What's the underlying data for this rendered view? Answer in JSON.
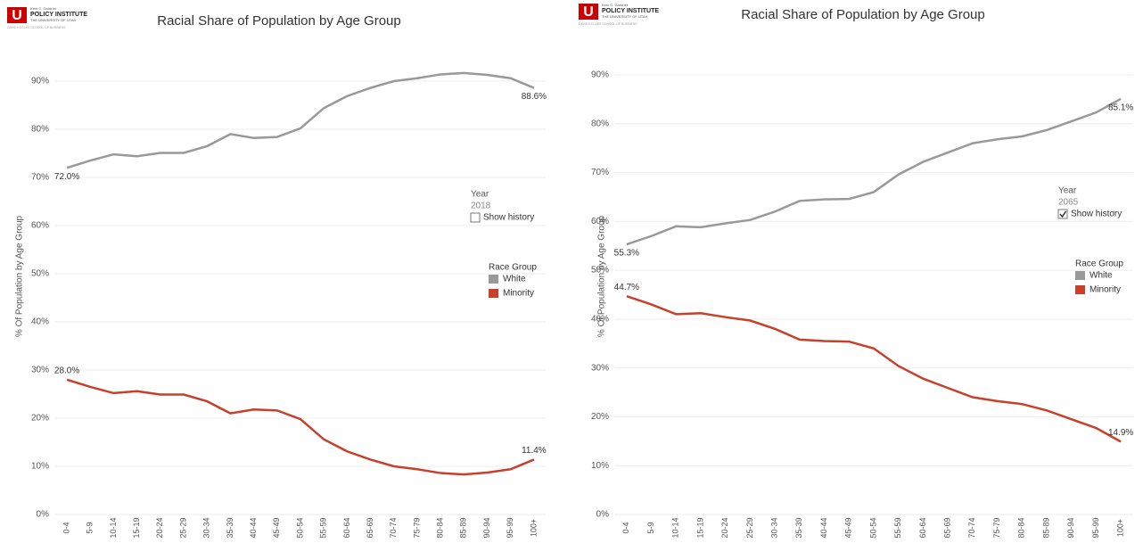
{
  "chart_data": [
    {
      "type": "line",
      "title": "Racial Share of Population by Age Group",
      "logo": {
        "top": "Kem C. Gardner",
        "name": "POLICY INSTITUTE",
        "university": "THE UNIVERSITY OF UTAH",
        "school": "DAVID ECCLES SCHOOL OF BUSINESS"
      },
      "y_label": "% Of Population by Age Group",
      "filter": {
        "label": "Year",
        "value": "2018",
        "checkbox": "Show history",
        "checked": false
      },
      "legend_title": "Race Group",
      "categories": [
        "0-4",
        "5-9",
        "10-14",
        "15-19",
        "20-24",
        "25-29",
        "30-34",
        "35-39",
        "40-44",
        "45-49",
        "50-54",
        "55-59",
        "60-64",
        "65-69",
        "70-74",
        "75-79",
        "80-84",
        "85-89",
        "90-94",
        "95-99",
        "100+"
      ],
      "series": [
        {
          "name": "White",
          "color": "#999999",
          "values": [
            72.0,
            73.5,
            74.8,
            74.4,
            75.1,
            75.1,
            76.5,
            79.0,
            78.2,
            78.4,
            80.2,
            84.4,
            86.9,
            88.6,
            90.0,
            90.6,
            91.4,
            91.7,
            91.3,
            90.6,
            88.6
          ],
          "value_labels": [
            "72.0%",
            null,
            null,
            null,
            null,
            null,
            null,
            null,
            null,
            null,
            null,
            null,
            null,
            null,
            null,
            null,
            null,
            null,
            null,
            null,
            "88.6%"
          ]
        },
        {
          "name": "Minority",
          "color": "#c8402a",
          "values": [
            28.0,
            26.5,
            25.2,
            25.6,
            24.9,
            24.9,
            23.5,
            21.0,
            21.8,
            21.6,
            19.8,
            15.6,
            13.1,
            11.4,
            10.0,
            9.4,
            8.6,
            8.3,
            8.7,
            9.4,
            11.4
          ],
          "value_labels": [
            "28.0%",
            null,
            null,
            null,
            null,
            null,
            null,
            null,
            null,
            null,
            null,
            null,
            null,
            null,
            null,
            null,
            null,
            null,
            null,
            null,
            "11.4%"
          ]
        }
      ],
      "ylim": [
        0,
        97
      ],
      "yticks": [
        {
          "value": 0,
          "label": "0%"
        },
        {
          "value": 10,
          "label": "10%"
        },
        {
          "value": 20,
          "label": "20%"
        },
        {
          "value": 30,
          "label": "30%"
        },
        {
          "value": 40,
          "label": "40%"
        },
        {
          "value": 50,
          "label": "50%"
        },
        {
          "value": 60,
          "label": "60%"
        },
        {
          "value": 70,
          "label": "70%"
        },
        {
          "value": 80,
          "label": "80%"
        },
        {
          "value": 90,
          "label": "90%"
        }
      ],
      "grid": true
    },
    {
      "type": "line",
      "title": "Racial Share of Population by Age Group",
      "logo": {
        "top": "Kem C. Gardner",
        "name": "POLICY INSTITUTE",
        "university": "THE UNIVERSITY OF UTAH",
        "school": "DAVID ECCLES SCHOOL OF BUSINESS"
      },
      "y_label": "% Of Population by Age Group",
      "filter": {
        "label": "Year",
        "value": "2065",
        "checkbox": "Show history",
        "checked": true
      },
      "legend_title": "Race Group",
      "categories": [
        "0-4",
        "5-9",
        "10-14",
        "15-19",
        "20-24",
        "25-29",
        "30-34",
        "35-39",
        "40-44",
        "45-49",
        "50-54",
        "55-59",
        "60-64",
        "65-69",
        "70-74",
        "75-79",
        "80-84",
        "85-89",
        "90-94",
        "95-99",
        "100+"
      ],
      "series": [
        {
          "name": "White",
          "color": "#999999",
          "values": [
            55.3,
            57.0,
            59.0,
            58.8,
            59.6,
            60.3,
            62.0,
            64.2,
            64.5,
            64.6,
            66.0,
            69.6,
            72.2,
            74.1,
            76.0,
            76.8,
            77.4,
            78.7,
            80.5,
            82.3,
            85.1
          ],
          "value_labels": [
            "55.3%",
            null,
            null,
            null,
            null,
            null,
            null,
            null,
            null,
            null,
            null,
            null,
            null,
            null,
            null,
            null,
            null,
            null,
            null,
            null,
            "85.1%"
          ]
        },
        {
          "name": "Minority",
          "color": "#c8402a",
          "values": [
            44.7,
            43.0,
            41.0,
            41.2,
            40.4,
            39.7,
            38.0,
            35.8,
            35.5,
            35.4,
            34.0,
            30.4,
            27.8,
            25.9,
            24.0,
            23.2,
            22.6,
            21.3,
            19.5,
            17.7,
            14.9
          ],
          "value_labels": [
            "44.7%",
            null,
            null,
            null,
            null,
            null,
            null,
            null,
            null,
            null,
            null,
            null,
            null,
            null,
            null,
            null,
            null,
            null,
            null,
            null,
            "14.9%"
          ]
        }
      ],
      "ylim": [
        0,
        96
      ],
      "yticks": [
        {
          "value": 0,
          "label": "0%"
        },
        {
          "value": 10,
          "label": "10%"
        },
        {
          "value": 20,
          "label": "20%"
        },
        {
          "value": 30,
          "label": "30%"
        },
        {
          "value": 40,
          "label": "40%"
        },
        {
          "value": 50,
          "label": "50%"
        },
        {
          "value": 60,
          "label": "60%"
        },
        {
          "value": 70,
          "label": "70%"
        },
        {
          "value": 80,
          "label": "80%"
        },
        {
          "value": 90,
          "label": "90%"
        }
      ],
      "grid": true
    }
  ]
}
